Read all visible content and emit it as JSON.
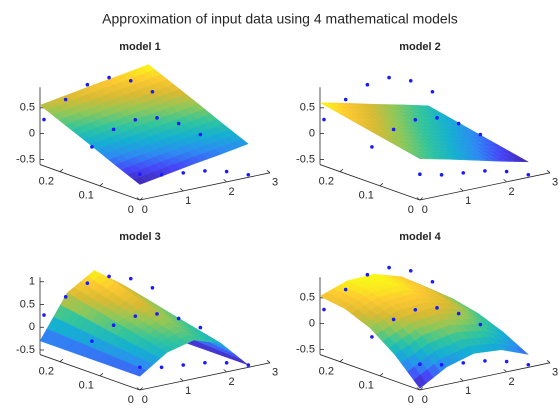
{
  "title": "Approximation of input data using 4 mathematical models",
  "colormap": [
    "#3e26a8",
    "#4743f8",
    "#2d8bf2",
    "#14b0d1",
    "#31c59c",
    "#8cc85a",
    "#d9ba32",
    "#fdc931",
    "#f9fb15"
  ],
  "input_data": {
    "color": "#1a1aff",
    "x": [
      0,
      0.5,
      1,
      1.5,
      2,
      2.5,
      0,
      0.5,
      1,
      1.5,
      2,
      2.5,
      0,
      0.5,
      1,
      1.5,
      2,
      2.5
    ],
    "y": [
      0,
      0,
      0,
      0,
      0,
      0,
      0.12,
      0.12,
      0.12,
      0.12,
      0.12,
      0.12,
      0.24,
      0.24,
      0.24,
      0.24,
      0.24,
      0.24
    ],
    "z": [
      -0.1,
      -0.2,
      -0.25,
      -0.3,
      -0.4,
      -0.55,
      0.1,
      0.35,
      0.45,
      0.4,
      0.2,
      -0.1,
      0.3,
      0.6,
      0.8,
      0.85,
      0.7,
      0.4
    ]
  },
  "chart_data": [
    {
      "type": "surface3d",
      "title": "model 1",
      "xlim": [
        0,
        3
      ],
      "xticks": [
        0,
        1,
        2,
        3
      ],
      "ylim": [
        0,
        0.25
      ],
      "yticks": [
        0,
        0.1,
        0.2
      ],
      "zlim": [
        -0.6,
        0.9
      ],
      "zticks": [
        -0.5,
        0,
        0.5
      ],
      "surface": {
        "x": [
          0,
          0.625,
          1.25,
          1.875,
          2.5
        ],
        "y": [
          0,
          0.0625,
          0.125,
          0.1875,
          0.25
        ],
        "z": [
          [
            -0.3,
            -0.21,
            -0.12,
            -0.04,
            0.05
          ],
          [
            -0.09,
            0.0,
            0.09,
            0.17,
            0.26
          ],
          [
            0.13,
            0.22,
            0.31,
            0.39,
            0.48
          ],
          [
            0.34,
            0.43,
            0.52,
            0.6,
            0.69
          ],
          [
            0.55,
            0.64,
            0.73,
            0.81,
            0.9
          ]
        ]
      }
    },
    {
      "type": "surface3d",
      "title": "model 2",
      "xlim": [
        0,
        3
      ],
      "xticks": [
        0,
        1,
        2,
        3
      ],
      "ylim": [
        0,
        0.25
      ],
      "yticks": [
        0,
        0.1,
        0.2
      ],
      "zlim": [
        -0.6,
        0.9
      ],
      "zticks": [
        -0.5,
        0,
        0.5
      ],
      "surface": {
        "x": [
          0,
          0.625,
          1.25,
          1.875,
          2.5
        ],
        "y": [
          0,
          0.0625,
          0.125,
          0.1875,
          0.25
        ],
        "z": [
          [
            0.2,
            0.08,
            -0.05,
            -0.18,
            -0.3
          ],
          [
            0.3,
            0.18,
            0.05,
            -0.08,
            -0.2
          ],
          [
            0.4,
            0.28,
            0.15,
            0.03,
            -0.1
          ],
          [
            0.5,
            0.38,
            0.25,
            0.13,
            0.0
          ],
          [
            0.6,
            0.48,
            0.35,
            0.23,
            0.1
          ]
        ]
      }
    },
    {
      "type": "surface3d",
      "title": "model 3",
      "xlim": [
        0,
        3
      ],
      "xticks": [
        0,
        1,
        2,
        3
      ],
      "ylim": [
        0,
        0.25
      ],
      "yticks": [
        0,
        0.1,
        0.2
      ],
      "zlim": [
        -0.6,
        1.1
      ],
      "zticks": [
        -0.5,
        0,
        0.5,
        1
      ],
      "surface": {
        "x": [
          0,
          0.625,
          1.25,
          1.875,
          2.5
        ],
        "y": [
          0,
          0.0625,
          0.125,
          0.1875,
          0.25
        ],
        "z": [
          [
            -0.3,
            0.1,
            0.25,
            0.05,
            -0.55
          ],
          [
            -0.3,
            0.23,
            0.44,
            0.18,
            -0.55
          ],
          [
            -0.3,
            0.36,
            0.63,
            0.31,
            -0.55
          ],
          [
            -0.3,
            0.5,
            0.81,
            0.45,
            -0.55
          ],
          [
            -0.3,
            0.63,
            1.0,
            0.58,
            -0.55
          ]
        ]
      }
    },
    {
      "type": "surface3d",
      "title": "model 4",
      "xlim": [
        0,
        3
      ],
      "xticks": [
        0,
        1,
        2,
        3
      ],
      "ylim": [
        0,
        0.25
      ],
      "yticks": [
        0,
        0.1,
        0.2
      ],
      "zlim": [
        -0.6,
        0.9
      ],
      "zticks": [
        -0.5,
        0,
        0.5
      ],
      "surface": {
        "x": [
          0,
          0.625,
          1.25,
          1.875,
          2.5
        ],
        "y": [
          0,
          0.0625,
          0.125,
          0.1875,
          0.25
        ],
        "z": [
          [
            -0.57,
            -0.26,
            -0.11,
            -0.15,
            -0.35
          ],
          [
            -0.09,
            0.17,
            0.26,
            0.17,
            -0.09
          ],
          [
            0.26,
            0.48,
            0.53,
            0.4,
            0.1
          ],
          [
            0.46,
            0.66,
            0.69,
            0.53,
            0.21
          ],
          [
            0.53,
            0.72,
            0.74,
            0.58,
            0.25
          ]
        ]
      }
    }
  ]
}
